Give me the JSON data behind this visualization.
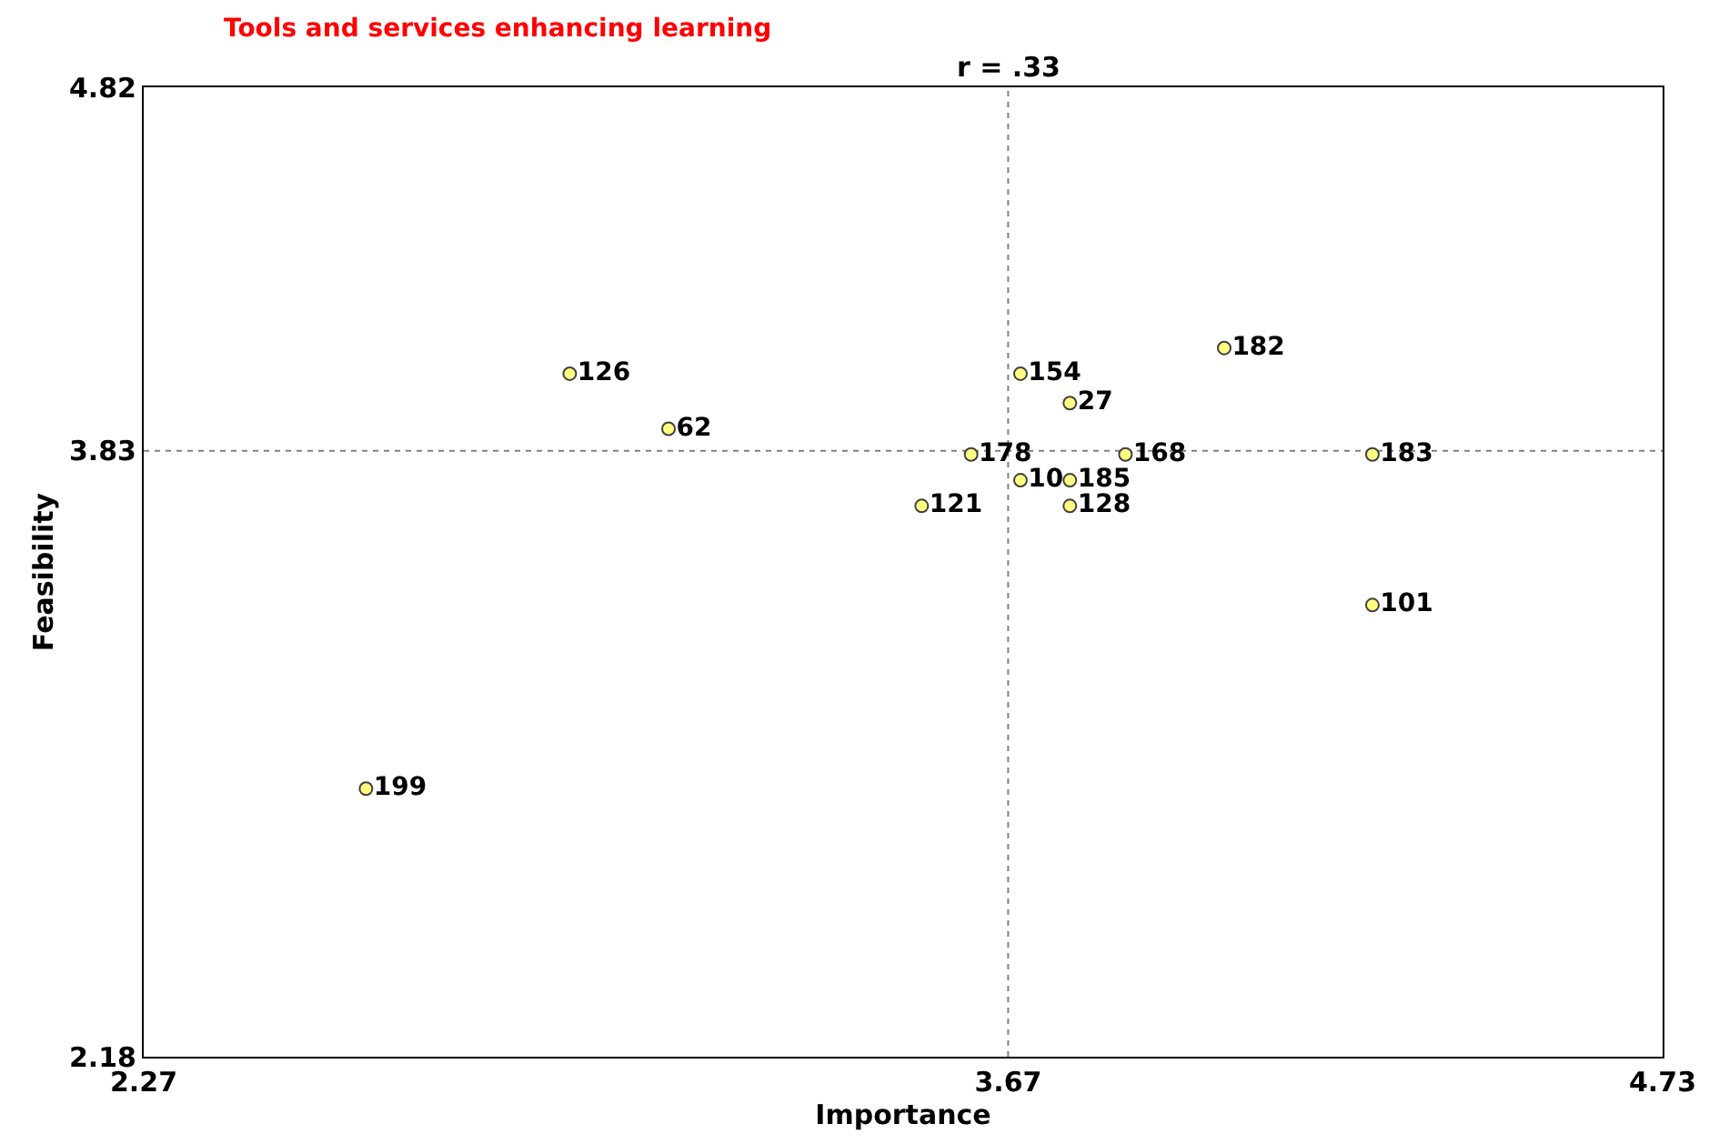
{
  "chart_data": {
    "type": "scatter",
    "title": "Tools and services enhancing learning",
    "subtitle": "r = .33",
    "xlabel": "Importance",
    "ylabel": "Feasibility",
    "x": [
      2.96,
      3.12,
      2.63,
      3.53,
      3.61,
      3.69,
      3.77,
      3.77,
      3.69,
      3.77,
      3.86,
      4.02,
      4.26,
      4.26
    ],
    "series": [
      {
        "color": "#ffff80",
        "values": [
          4.04,
          3.89,
          2.91,
          3.68,
          3.82,
          3.75,
          3.75,
          3.68,
          4.04,
          3.96,
          3.82,
          4.11,
          3.82,
          3.41
        ]
      }
    ],
    "annotations": [
      {
        "text": "126",
        "x": 2.96,
        "y": 4.04
      },
      {
        "text": "62",
        "x": 3.12,
        "y": 3.89
      },
      {
        "text": "199",
        "x": 2.63,
        "y": 2.91
      },
      {
        "text": "121",
        "x": 3.53,
        "y": 3.68
      },
      {
        "text": "178",
        "x": 3.61,
        "y": 3.82
      },
      {
        "text": "10",
        "x": 3.69,
        "y": 3.75
      },
      {
        "text": "185",
        "x": 3.77,
        "y": 3.75
      },
      {
        "text": "128",
        "x": 3.77,
        "y": 3.68
      },
      {
        "text": "154",
        "x": 3.69,
        "y": 4.04
      },
      {
        "text": "27",
        "x": 3.77,
        "y": 3.96
      },
      {
        "text": "168",
        "x": 3.86,
        "y": 3.82
      },
      {
        "text": "182",
        "x": 4.02,
        "y": 4.11
      },
      {
        "text": "183",
        "x": 4.26,
        "y": 3.82
      },
      {
        "text": "101",
        "x": 4.26,
        "y": 3.41
      }
    ],
    "xlim": [
      2.27,
      4.73
    ],
    "ylim": [
      2.18,
      4.82
    ],
    "xticks": [
      2.27,
      3.67,
      4.73
    ],
    "yticks": [
      2.18,
      3.83,
      4.82
    ],
    "ref_lines": [
      {
        "axis": "x",
        "value": 3.67,
        "color": "#808080",
        "line_style": "dotted"
      },
      {
        "axis": "y",
        "value": 3.83,
        "color": "#808080",
        "line_style": "dotted"
      }
    ],
    "grid": false,
    "marker": "circle"
  }
}
